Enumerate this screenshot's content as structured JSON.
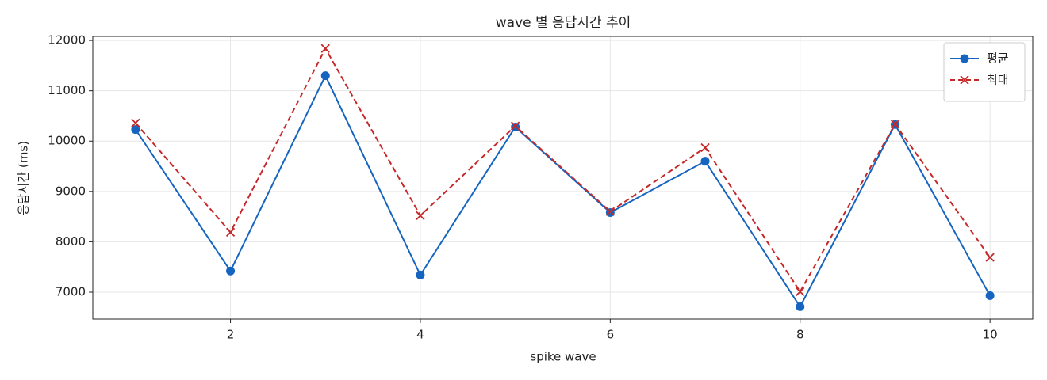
{
  "chart_data": {
    "type": "line",
    "title": "wave 별 응답시간 추이",
    "x_label": "spike wave",
    "y_label": "응답시간 (ms)",
    "x": [
      1,
      2,
      3,
      4,
      5,
      6,
      7,
      8,
      9,
      10
    ],
    "series": [
      {
        "name": "평균",
        "color": "#1565c0",
        "linestyle": "solid",
        "marker": "o",
        "values": [
          10230,
          7420,
          11300,
          7340,
          10280,
          8580,
          9600,
          6710,
          10330,
          6930
        ]
      },
      {
        "name": "최대",
        "color": "#c62828",
        "linestyle": "dashed",
        "marker": "x",
        "values": [
          10360,
          8190,
          11840,
          8520,
          10300,
          8600,
          9870,
          7010,
          10340,
          7690
        ]
      }
    ],
    "xlim": [
      0.55,
      10.45
    ],
    "xticks": [
      2,
      4,
      6,
      8,
      10
    ],
    "ylim": [
      6465,
      12080
    ],
    "yticks": [
      7000,
      8000,
      9000,
      10000,
      11000,
      12000
    ],
    "grid": true,
    "legend": "upper right"
  }
}
